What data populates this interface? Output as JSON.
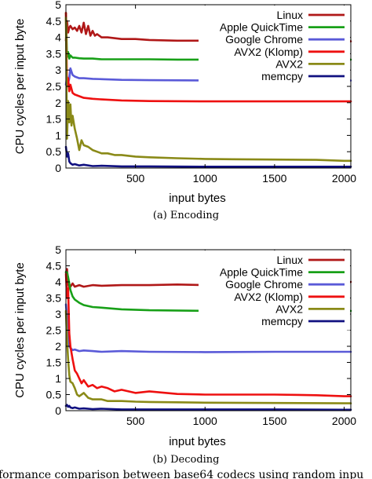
{
  "caption_bottom": "formance comparison between base64 codecs using random inpu",
  "chart_data": [
    {
      "type": "line",
      "caption": "(a) Encoding",
      "xlabel": "input bytes",
      "ylabel": "CPU cycles per input byte",
      "xlim": [
        0,
        2048
      ],
      "ylim": [
        0,
        5
      ],
      "xticks": [
        500,
        1000,
        1500,
        2000
      ],
      "yticks": [
        0,
        0.5,
        1,
        1.5,
        2,
        2.5,
        3,
        3.5,
        4,
        4.5,
        5
      ],
      "legend_position": "top-right",
      "grid": false,
      "series": [
        {
          "name": "Linux",
          "color": "#b01818",
          "x": [
            0,
            8,
            16,
            24,
            32,
            48,
            64,
            80,
            96,
            112,
            128,
            144,
            160,
            176,
            192,
            208,
            224,
            256,
            300,
            400,
            500,
            600,
            800,
            1000,
            1200,
            1400,
            1600,
            1800,
            2000,
            2048
          ],
          "y": [
            3.9,
            4.5,
            4.15,
            4.3,
            4.35,
            4.25,
            4.3,
            4.2,
            4.35,
            4.15,
            4.45,
            4.1,
            4.35,
            4.05,
            4.2,
            4.05,
            4.1,
            4.0,
            4.0,
            3.95,
            3.95,
            3.92,
            3.9,
            3.9,
            3.92,
            3.9,
            3.9,
            3.9,
            3.88,
            3.88
          ]
        },
        {
          "name": "Apple QuickTime",
          "color": "#18a018",
          "x": [
            0,
            8,
            16,
            24,
            32,
            48,
            64,
            96,
            128,
            192,
            256,
            400,
            600,
            800,
            1000,
            1500,
            2000,
            2048
          ],
          "y": [
            4.75,
            3.4,
            3.55,
            3.35,
            3.45,
            3.38,
            3.38,
            3.36,
            3.35,
            3.35,
            3.33,
            3.33,
            3.33,
            3.32,
            3.32,
            3.32,
            3.32,
            3.32
          ]
        },
        {
          "name": "Google Chrome",
          "color": "#5a5ad8",
          "x": [
            0,
            8,
            16,
            24,
            32,
            48,
            64,
            96,
            128,
            192,
            256,
            400,
            600,
            1000,
            1500,
            2000,
            2048
          ],
          "y": [
            2.55,
            2.8,
            2.6,
            2.75,
            3.05,
            2.85,
            2.8,
            2.75,
            2.75,
            2.73,
            2.72,
            2.7,
            2.69,
            2.68,
            2.68,
            2.68,
            2.68
          ]
        },
        {
          "name": "AVX2 (Klomp)",
          "color": "#ee1010",
          "x": [
            0,
            8,
            16,
            24,
            32,
            48,
            64,
            96,
            128,
            192,
            256,
            400,
            600,
            1000,
            1500,
            2000,
            2048
          ],
          "y": [
            4.75,
            2.5,
            2.75,
            2.35,
            2.55,
            2.3,
            2.25,
            2.2,
            2.15,
            2.12,
            2.1,
            2.07,
            2.05,
            2.04,
            2.04,
            2.04,
            2.04
          ]
        },
        {
          "name": "AVX2",
          "color": "#8a8a18",
          "x": [
            0,
            8,
            16,
            24,
            32,
            40,
            48,
            64,
            80,
            96,
            112,
            128,
            160,
            192,
            224,
            256,
            300,
            350,
            400,
            500,
            600,
            800,
            1000,
            1200,
            1500,
            1800,
            2000,
            2048
          ],
          "y": [
            4.6,
            0.9,
            2.05,
            1.4,
            1.95,
            1.3,
            1.6,
            1.2,
            0.9,
            0.55,
            0.85,
            0.7,
            0.65,
            0.55,
            0.5,
            0.45,
            0.45,
            0.4,
            0.4,
            0.35,
            0.33,
            0.3,
            0.28,
            0.27,
            0.26,
            0.25,
            0.22,
            0.22
          ]
        },
        {
          "name": "memcpy",
          "color": "#101080",
          "x": [
            0,
            8,
            16,
            24,
            32,
            48,
            64,
            96,
            128,
            192,
            256,
            400,
            600,
            1000,
            1500,
            2000,
            2048
          ],
          "y": [
            0.65,
            0.35,
            0.45,
            0.2,
            0.15,
            0.1,
            0.12,
            0.08,
            0.1,
            0.06,
            0.07,
            0.05,
            0.05,
            0.04,
            0.04,
            0.04,
            0.04
          ]
        }
      ]
    },
    {
      "type": "line",
      "caption": "(b) Decoding",
      "xlabel": "input bytes",
      "ylabel": "CPU cycles per input byte",
      "xlim": [
        0,
        2048
      ],
      "ylim": [
        0,
        5
      ],
      "xticks": [
        500,
        1000,
        1500,
        2000
      ],
      "yticks": [
        0,
        0.5,
        1,
        1.5,
        2,
        2.5,
        3,
        3.5,
        4,
        4.5,
        5
      ],
      "legend_position": "top-right",
      "grid": false,
      "series": [
        {
          "name": "Linux",
          "color": "#b01818",
          "x": [
            0,
            8,
            16,
            24,
            32,
            48,
            64,
            96,
            128,
            192,
            256,
            400,
            600,
            800,
            1000,
            1200,
            1500,
            1800,
            2000,
            2048
          ],
          "y": [
            4.3,
            4.4,
            3.95,
            3.8,
            3.85,
            3.95,
            3.85,
            3.9,
            3.85,
            3.9,
            3.88,
            3.9,
            3.9,
            3.92,
            3.9,
            3.9,
            3.9,
            3.92,
            3.95,
            4.0
          ]
        },
        {
          "name": "Apple QuickTime",
          "color": "#18a018",
          "x": [
            0,
            8,
            16,
            24,
            32,
            48,
            64,
            96,
            128,
            192,
            256,
            400,
            600,
            1000,
            1500,
            2000,
            2048
          ],
          "y": [
            4.3,
            4.3,
            4.15,
            3.95,
            3.75,
            3.55,
            3.45,
            3.35,
            3.28,
            3.22,
            3.2,
            3.15,
            3.12,
            3.1,
            3.1,
            3.1,
            3.1
          ]
        },
        {
          "name": "Google Chrome",
          "color": "#5a5ad8",
          "x": [
            0,
            8,
            16,
            24,
            32,
            48,
            64,
            96,
            128,
            192,
            256,
            400,
            600,
            1000,
            1500,
            2000,
            2048
          ],
          "y": [
            3.3,
            2.9,
            2.3,
            2.0,
            1.95,
            1.88,
            1.9,
            1.85,
            1.87,
            1.85,
            1.83,
            1.85,
            1.83,
            1.82,
            1.83,
            1.83,
            1.83
          ]
        },
        {
          "name": "AVX2 (Klomp)",
          "color": "#ee1010",
          "x": [
            0,
            8,
            16,
            24,
            32,
            48,
            64,
            80,
            96,
            112,
            128,
            160,
            192,
            224,
            256,
            300,
            350,
            400,
            500,
            600,
            800,
            1000,
            1200,
            1500,
            1800,
            2000,
            2048
          ],
          "y": [
            4.25,
            3.5,
            3.8,
            2.4,
            2.0,
            1.6,
            1.25,
            1.15,
            1.0,
            0.85,
            0.95,
            0.75,
            0.8,
            0.7,
            0.75,
            0.7,
            0.6,
            0.65,
            0.55,
            0.6,
            0.52,
            0.5,
            0.5,
            0.5,
            0.48,
            0.45,
            0.45
          ]
        },
        {
          "name": "AVX2",
          "color": "#8a8a18",
          "x": [
            0,
            8,
            16,
            24,
            32,
            48,
            64,
            80,
            96,
            128,
            160,
            192,
            256,
            300,
            400,
            500,
            600,
            800,
            1000,
            1500,
            2000,
            2048
          ],
          "y": [
            3.1,
            2.2,
            1.6,
            1.1,
            0.9,
            0.85,
            0.7,
            0.5,
            0.45,
            0.55,
            0.4,
            0.35,
            0.35,
            0.3,
            0.3,
            0.28,
            0.27,
            0.26,
            0.25,
            0.24,
            0.23,
            0.23
          ]
        },
        {
          "name": "memcpy",
          "color": "#101080",
          "x": [
            0,
            8,
            16,
            24,
            32,
            48,
            64,
            96,
            128,
            192,
            256,
            400,
            600,
            1000,
            1500,
            2000,
            2048
          ],
          "y": [
            0.15,
            0.18,
            0.12,
            0.15,
            0.1,
            0.08,
            0.1,
            0.06,
            0.07,
            0.05,
            0.06,
            0.04,
            0.04,
            0.04,
            0.04,
            0.03,
            0.03
          ]
        }
      ]
    }
  ]
}
